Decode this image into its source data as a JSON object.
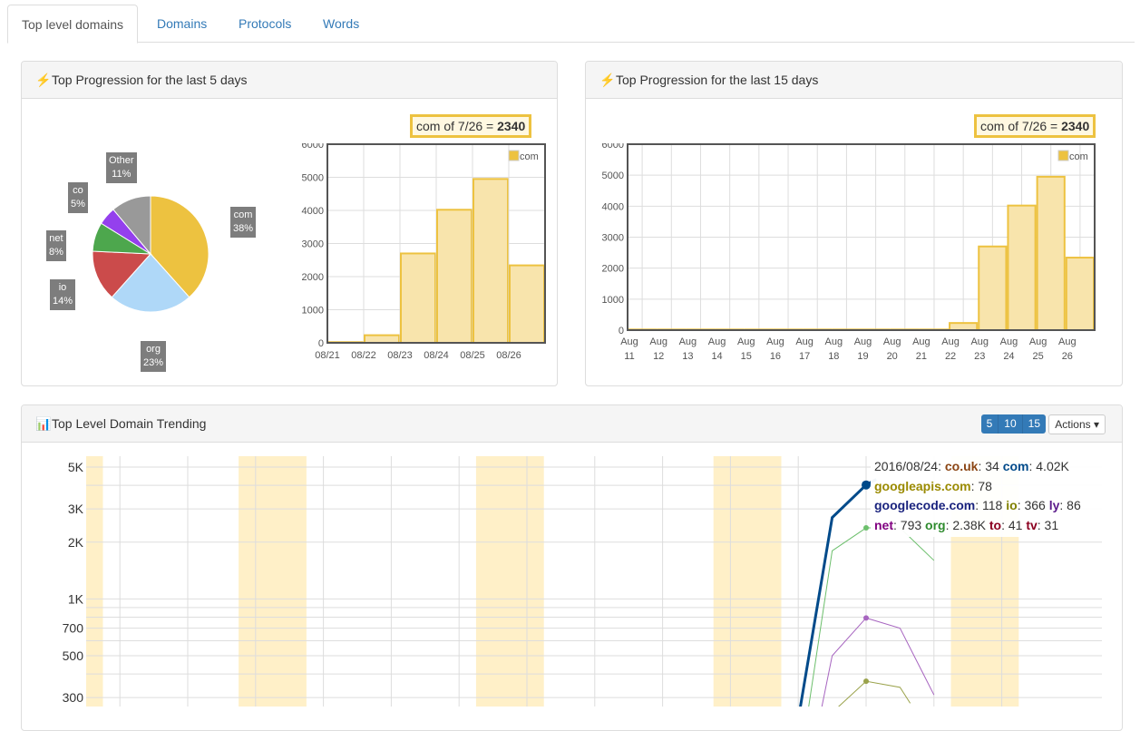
{
  "tabs": [
    {
      "label": "Top level domains",
      "active": true
    },
    {
      "label": "Domains"
    },
    {
      "label": "Protocols"
    },
    {
      "label": "Words"
    }
  ],
  "panel5": {
    "title": "Top Progression for the last 5 days",
    "icon": "bolt-icon",
    "tooltip": {
      "text": "com of 7/26 = ",
      "value": "2340"
    }
  },
  "panel15": {
    "title": "Top Progression for the last 15 days",
    "icon": "bolt-icon",
    "tooltip": {
      "text": "com of 7/26 = ",
      "value": "2340"
    }
  },
  "trend": {
    "title": "Top Level Domain Trending",
    "icon": "bar-chart-icon",
    "ranges": [
      "5",
      "10",
      "15"
    ],
    "actions_label": "Actions"
  },
  "colors": {
    "com": "#edc240",
    "org": "#afd8f8",
    "io": "#cb4b4b",
    "net": "#4da74d",
    "co": "#9440ed",
    "other": "#999999",
    "band": "#fff0c8"
  },
  "chart_data": [
    {
      "type": "pie",
      "slices": [
        {
          "label": "com",
          "value": 38,
          "text": "38%"
        },
        {
          "label": "org",
          "value": 23,
          "text": "23%"
        },
        {
          "label": "io",
          "value": 14,
          "text": "14%"
        },
        {
          "label": "net",
          "value": 8,
          "text": "8%"
        },
        {
          "label": "co",
          "value": 5,
          "text": "5%"
        },
        {
          "label": "Other",
          "value": 11,
          "text": "11%"
        }
      ]
    },
    {
      "type": "bar",
      "categories": [
        "08/21",
        "08/22",
        "08/23",
        "08/24",
        "08/25",
        "08/26"
      ],
      "series": [
        {
          "name": "com",
          "values": [
            20,
            230,
            2700,
            4020,
            4950,
            2340
          ]
        }
      ],
      "ylim": [
        0,
        6000
      ],
      "yticks": [
        0,
        1000,
        2000,
        3000,
        4000,
        5000,
        6000
      ],
      "grid": true,
      "legend": "top-right"
    },
    {
      "type": "bar",
      "categories": [
        "Aug 11",
        "Aug 12",
        "Aug 13",
        "Aug 14",
        "Aug 15",
        "Aug 16",
        "Aug 17",
        "Aug 18",
        "Aug 19",
        "Aug 20",
        "Aug 21",
        "Aug 22",
        "Aug 23",
        "Aug 24",
        "Aug 25",
        "Aug 26"
      ],
      "series": [
        {
          "name": "com",
          "values": [
            20,
            20,
            20,
            20,
            20,
            20,
            20,
            20,
            20,
            20,
            20,
            230,
            2700,
            4020,
            4950,
            2340
          ]
        }
      ],
      "ylim": [
        0,
        6000
      ],
      "yticks": [
        0,
        1000,
        2000,
        3000,
        4000,
        5000,
        6000
      ],
      "grid": true,
      "legend": "top-right"
    },
    {
      "type": "line",
      "yscale": "log",
      "yticks": [
        {
          "v": 5000,
          "l": "5K"
        },
        {
          "v": 3000,
          "l": "3K"
        },
        {
          "v": 2000,
          "l": "2K"
        },
        {
          "v": 1000,
          "l": "1K"
        },
        {
          "v": 700,
          "l": "700"
        },
        {
          "v": 500,
          "l": "500"
        },
        {
          "v": 300,
          "l": "300"
        }
      ],
      "weekend_bands": [
        [
          0.5,
          1.5
        ],
        [
          5.5,
          7.5
        ],
        [
          12.5,
          14.5
        ],
        [
          19.5,
          21.5
        ],
        [
          26.5,
          28.5
        ]
      ],
      "series": [
        {
          "name": "com",
          "color": "#004a8a",
          "width": 3,
          "x": [
            22,
            23,
            24,
            24.3
          ],
          "y": [
            230,
            2700,
            4020,
            4300
          ]
        },
        {
          "name": "org",
          "color": "#6cbf6c",
          "width": 1,
          "x": [
            22.2,
            23,
            24,
            25,
            26
          ],
          "y": [
            200,
            1800,
            2380,
            2380,
            1600
          ]
        },
        {
          "name": "net",
          "color": "#a765c0",
          "width": 1,
          "x": [
            22.5,
            23,
            24,
            25,
            26
          ],
          "y": [
            180,
            500,
            793,
            700,
            310
          ]
        },
        {
          "name": "io",
          "color": "#9aa24a",
          "width": 1,
          "x": [
            23,
            24,
            25,
            25.3
          ],
          "y": [
            250,
            366,
            340,
            280
          ]
        }
      ],
      "tooltip": {
        "date": "2016/08/24",
        "rows": [
          [
            {
              "k": "co.uk",
              "v": "34",
              "c": "#8b4513"
            },
            {
              "k": "com",
              "v": "4.02K",
              "c": "#004a8a"
            }
          ],
          [
            {
              "k": "googleapis.com",
              "v": "78",
              "c": "#9a8a00"
            }
          ],
          [
            {
              "k": "googlecode.com",
              "v": "118",
              "c": "#1a237e"
            },
            {
              "k": "io",
              "v": "366",
              "c": "#808000"
            },
            {
              "k": "ly",
              "v": "86",
              "c": "#5a1a8a"
            }
          ],
          [
            {
              "k": "net",
              "v": "793",
              "c": "#800080"
            },
            {
              "k": "org",
              "v": "2.38K",
              "c": "#2e8b2e"
            },
            {
              "k": "to",
              "v": "41",
              "c": "#8b0020"
            },
            {
              "k": "tv",
              "v": "31",
              "c": "#8b0020"
            }
          ]
        ]
      }
    }
  ]
}
